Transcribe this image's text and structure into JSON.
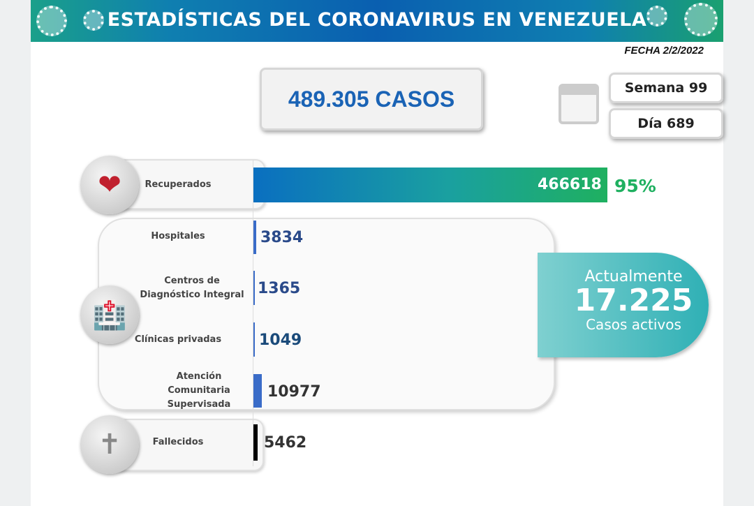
{
  "header": {
    "title": "ESTADÍSTICAS DEL CORONAVIRUS EN VENEZUELA",
    "date": "FECHA 2/2/2022"
  },
  "summary": {
    "total_cases": "489.305 CASOS",
    "week": "Semana 99",
    "day": "Día 689"
  },
  "active": {
    "prefix": "Actualmente",
    "value": "17.225",
    "suffix": "Casos activos"
  },
  "colors": {
    "recovered_bar": "#0a6fc0",
    "recovered_pct": "#1fb060",
    "hosp_bar": "#3a6cc8",
    "deaths_bar": "#000000",
    "active_bg": "#2fb0b5"
  },
  "chart_data": {
    "type": "bar",
    "orientation": "horizontal",
    "categories": [
      "Recuperados",
      "Hospitales",
      "Centros de Diagnóstico Integral",
      "Clínicas privadas",
      "Atención Comunitaria Supervisada",
      "Fallecidos"
    ],
    "values": [
      466618,
      3834,
      1365,
      1049,
      10977,
      5462
    ],
    "labels": [
      "466618",
      "3834",
      "1365",
      "1049",
      "10977",
      "5462"
    ],
    "recovered_percent": "95%"
  },
  "icons": {
    "recovered": "heart-pulse-icon",
    "hospital": "hospital-building-icon",
    "deaths": "tombstone-icon",
    "calendar": "calendar-icon"
  }
}
